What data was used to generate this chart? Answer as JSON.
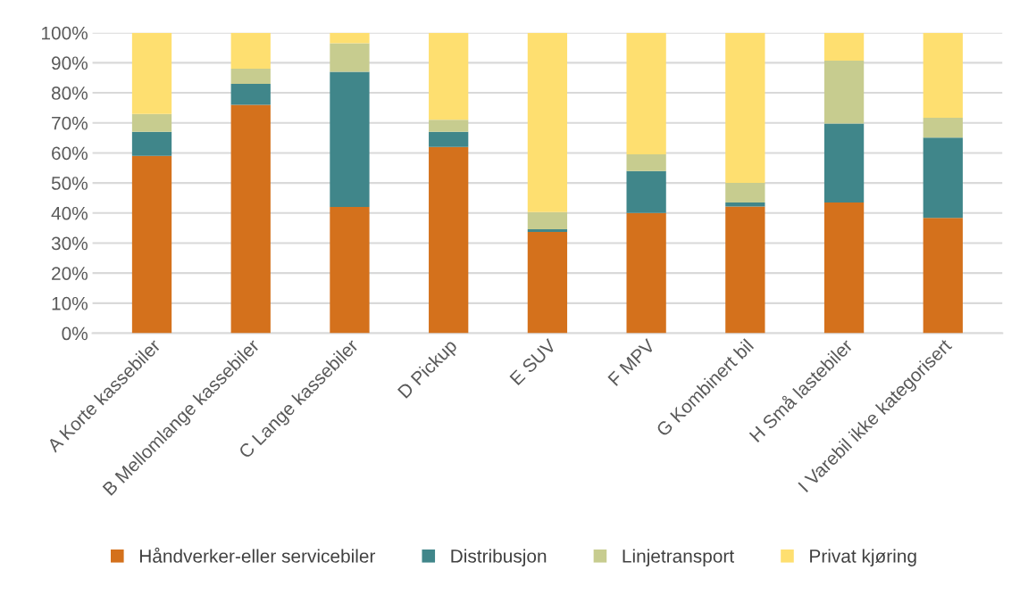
{
  "chart_data": {
    "type": "bar",
    "stacked": true,
    "categories": [
      "A Korte kassebiler",
      "B Mellomlange kassebiler",
      "C Lange kassebiler",
      "D Pickup",
      "E SUV",
      "F MPV",
      "G Kombinert bil",
      "H Små lastebiler",
      "I Varebil ikke kategorisert"
    ],
    "series": [
      {
        "name": "Håndverker-eller servicebiler",
        "color": "#d4711c",
        "values": [
          59,
          76,
          42,
          62,
          33.7,
          40,
          42.2,
          43.5,
          38.4
        ]
      },
      {
        "name": "Distribusjon",
        "color": "#40868a",
        "values": [
          8,
          7,
          45,
          5,
          0.9,
          14,
          1.3,
          26.3,
          26.7
        ]
      },
      {
        "name": "Linjetransport",
        "color": "#c7cc8f",
        "values": [
          6,
          5,
          9.5,
          4,
          5.7,
          5.5,
          6.5,
          20.9,
          6.6
        ]
      },
      {
        "name": "Privat kjøring",
        "color": "#fedf70",
        "values": [
          27,
          12,
          3.5,
          29,
          59.7,
          40.5,
          50,
          9.3,
          28.3
        ]
      }
    ],
    "ylim": [
      0,
      100
    ],
    "yticks": [
      {
        "value": 0,
        "label": "0%"
      },
      {
        "value": 10,
        "label": "10%"
      },
      {
        "value": 20,
        "label": "20%"
      },
      {
        "value": 30,
        "label": "30%"
      },
      {
        "value": 40,
        "label": "40%"
      },
      {
        "value": 50,
        "label": "50%"
      },
      {
        "value": 60,
        "label": "60%"
      },
      {
        "value": 70,
        "label": "70%"
      },
      {
        "value": 80,
        "label": "80%"
      },
      {
        "value": 90,
        "label": "90%"
      },
      {
        "value": 100,
        "label": "100%"
      }
    ],
    "grid": "y",
    "legend": "bottom"
  }
}
